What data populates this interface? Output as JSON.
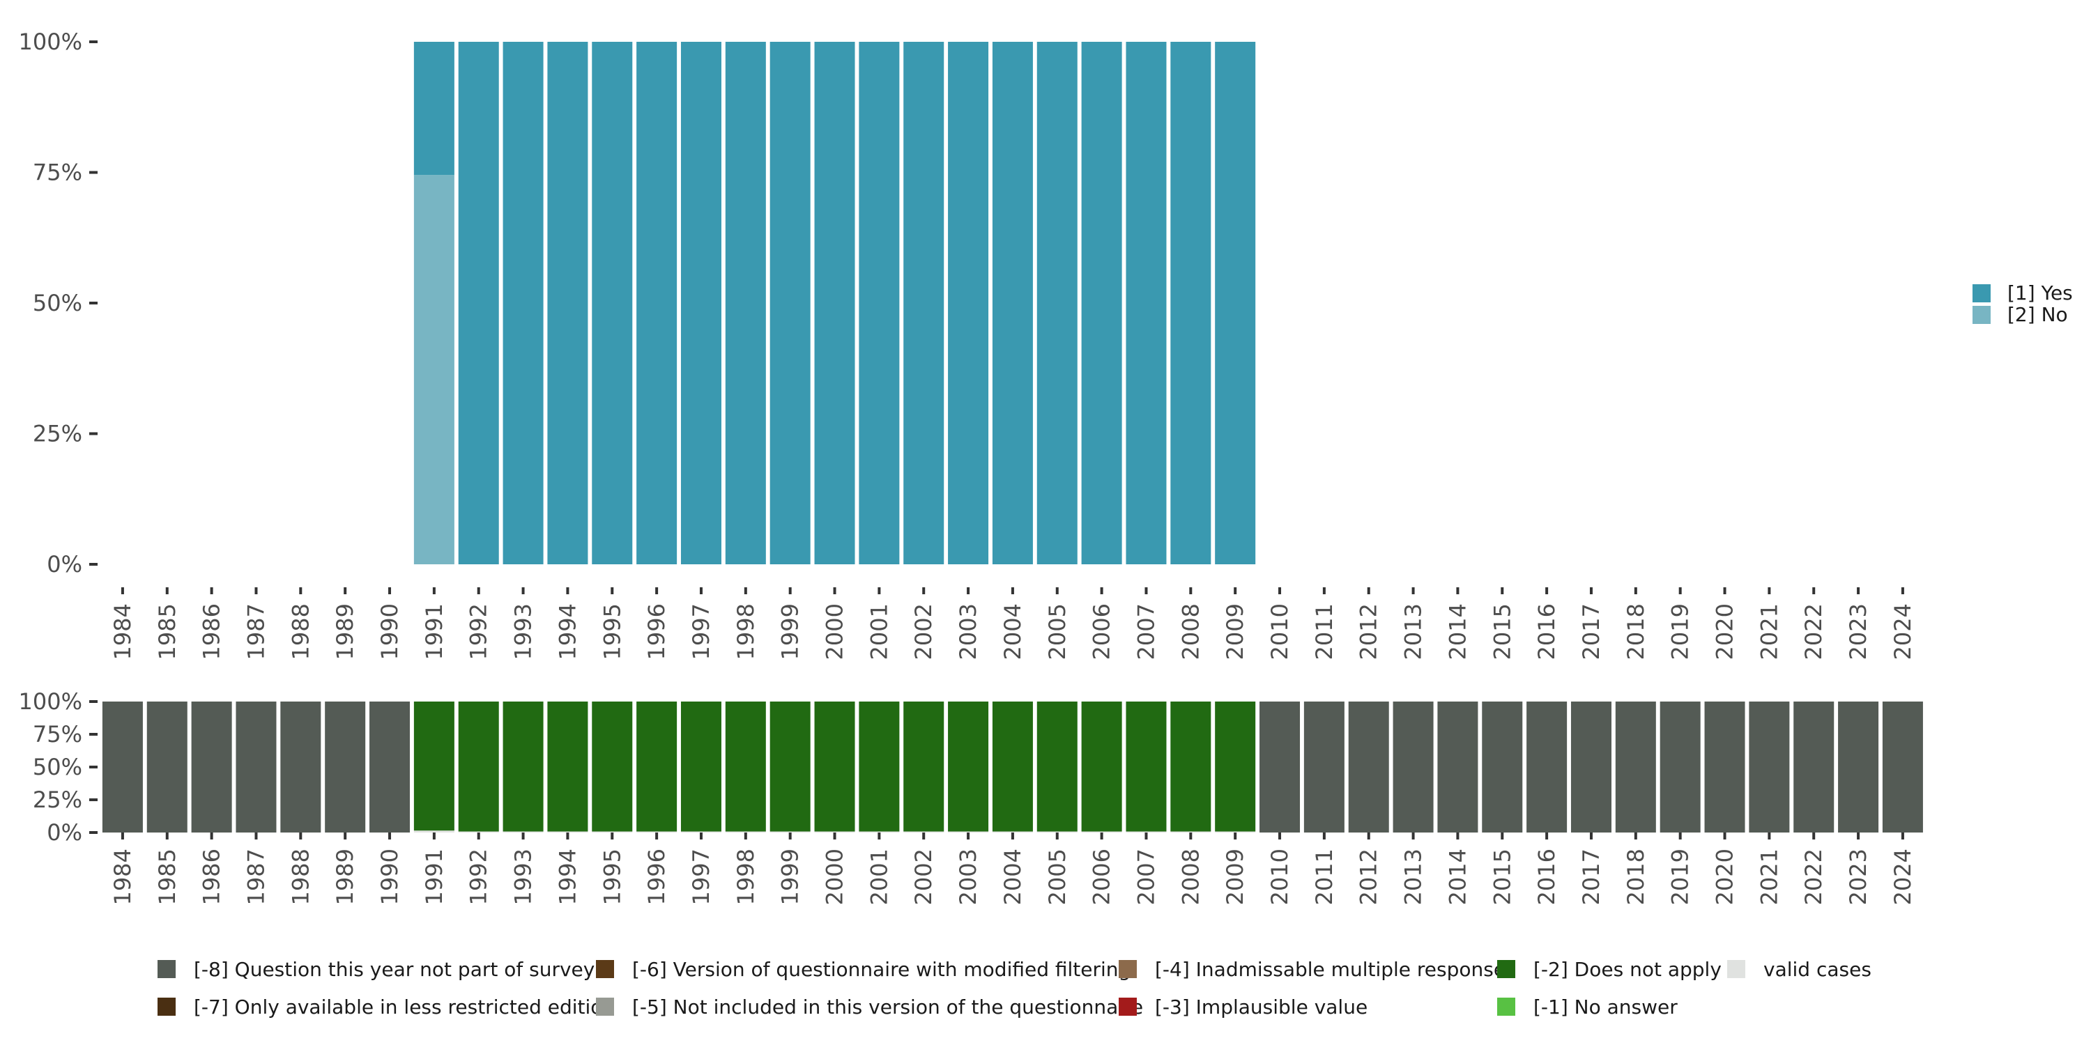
{
  "chart_data": [
    {
      "name": "valid-responses",
      "type": "bar",
      "stacked": true,
      "categories": [
        "1984",
        "1985",
        "1986",
        "1987",
        "1988",
        "1989",
        "1990",
        "1991",
        "1992",
        "1993",
        "1994",
        "1995",
        "1996",
        "1997",
        "1998",
        "1999",
        "2000",
        "2001",
        "2002",
        "2003",
        "2004",
        "2005",
        "2006",
        "2007",
        "2008",
        "2009",
        "2010",
        "2011",
        "2012",
        "2013",
        "2014",
        "2015",
        "2016",
        "2017",
        "2018",
        "2019",
        "2020",
        "2021",
        "2022",
        "2023",
        "2024"
      ],
      "y_ticks": [
        "0%",
        "25%",
        "50%",
        "75%",
        "100%"
      ],
      "ylim": [
        0,
        100
      ],
      "series": [
        {
          "name": "[2] No",
          "color": "#78b5c3",
          "values": [
            null,
            null,
            null,
            null,
            null,
            null,
            null,
            74.5,
            0,
            0,
            0,
            0,
            0,
            0,
            0,
            0,
            0,
            0,
            0,
            0,
            0,
            0,
            0,
            0,
            0,
            0,
            null,
            null,
            null,
            null,
            null,
            null,
            null,
            null,
            null,
            null,
            null,
            null,
            null,
            null,
            null
          ]
        },
        {
          "name": "[1] Yes",
          "color": "#3a99b0",
          "values": [
            null,
            null,
            null,
            null,
            null,
            null,
            null,
            25.5,
            100,
            100,
            100,
            100,
            100,
            100,
            100,
            100,
            100,
            100,
            100,
            100,
            100,
            100,
            100,
            100,
            100,
            100,
            null,
            null,
            null,
            null,
            null,
            null,
            null,
            null,
            null,
            null,
            null,
            null,
            null,
            null,
            null
          ]
        }
      ],
      "legend": [
        {
          "label": "[1] Yes",
          "color": "#3a99b0"
        },
        {
          "label": "[2] No",
          "color": "#78b5c3"
        }
      ],
      "legend_position": "right"
    },
    {
      "name": "missing-codes",
      "type": "bar",
      "stacked": true,
      "categories": [
        "1984",
        "1985",
        "1986",
        "1987",
        "1988",
        "1989",
        "1990",
        "1991",
        "1992",
        "1993",
        "1994",
        "1995",
        "1996",
        "1997",
        "1998",
        "1999",
        "2000",
        "2001",
        "2002",
        "2003",
        "2004",
        "2005",
        "2006",
        "2007",
        "2008",
        "2009",
        "2010",
        "2011",
        "2012",
        "2013",
        "2014",
        "2015",
        "2016",
        "2017",
        "2018",
        "2019",
        "2020",
        "2021",
        "2022",
        "2023",
        "2024"
      ],
      "y_ticks": [
        "0%",
        "25%",
        "50%",
        "75%",
        "100%"
      ],
      "ylim": [
        0,
        100
      ],
      "series": [
        {
          "name": "valid cases",
          "color": "#e0e2e0",
          "values": [
            0,
            0,
            0,
            0,
            0,
            0,
            0,
            1.5,
            0.8,
            0.8,
            0.8,
            0.8,
            0.8,
            0.8,
            0.8,
            0.8,
            0.8,
            0.8,
            0.8,
            0.8,
            0.8,
            0.8,
            0.8,
            0.8,
            0.8,
            0.8,
            0,
            0,
            0,
            0,
            0,
            0,
            0,
            0,
            0,
            0,
            0,
            0,
            0,
            0,
            0
          ]
        },
        {
          "name": "[-2] Does not apply",
          "color": "#216a12",
          "values": [
            0,
            0,
            0,
            0,
            0,
            0,
            0,
            98.5,
            99.2,
            99.2,
            99.2,
            99.2,
            99.2,
            99.2,
            99.2,
            99.2,
            99.2,
            99.2,
            99.2,
            99.2,
            99.2,
            99.2,
            99.2,
            99.2,
            99.2,
            99.2,
            0,
            0,
            0,
            0,
            0,
            0,
            0,
            0,
            0,
            0,
            0,
            0,
            0,
            0,
            0
          ]
        },
        {
          "name": "[-8] Question this year not part of survey",
          "color": "#545b55",
          "values": [
            100,
            100,
            100,
            100,
            100,
            100,
            100,
            0,
            0,
            0,
            0,
            0,
            0,
            0,
            0,
            0,
            0,
            0,
            0,
            0,
            0,
            0,
            0,
            0,
            0,
            0,
            100,
            100,
            100,
            100,
            100,
            100,
            100,
            100,
            100,
            100,
            100,
            100,
            100,
            100,
            100
          ]
        }
      ],
      "legend": [
        {
          "label": "[-8] Question this year not part of survey",
          "color": "#545b55"
        },
        {
          "label": "[-6] Version of questionnaire with modified filtering",
          "color": "#5b3a17"
        },
        {
          "label": "[-4] Inadmissable multiple response",
          "color": "#8c6a4b"
        },
        {
          "label": "[-2] Does not apply",
          "color": "#216a12"
        },
        {
          "label": "valid cases",
          "color": "#e0e2e0"
        },
        {
          "label": "[-7] Only available in less restricted edition",
          "color": "#4a2f12"
        },
        {
          "label": "[-5] Not included in this version of the questionnaire",
          "color": "#979a93"
        },
        {
          "label": "[-3] Implausible value",
          "color": "#a31b1b"
        },
        {
          "label": "[-1] No answer",
          "color": "#58c143"
        }
      ],
      "legend_position": "bottom"
    }
  ]
}
